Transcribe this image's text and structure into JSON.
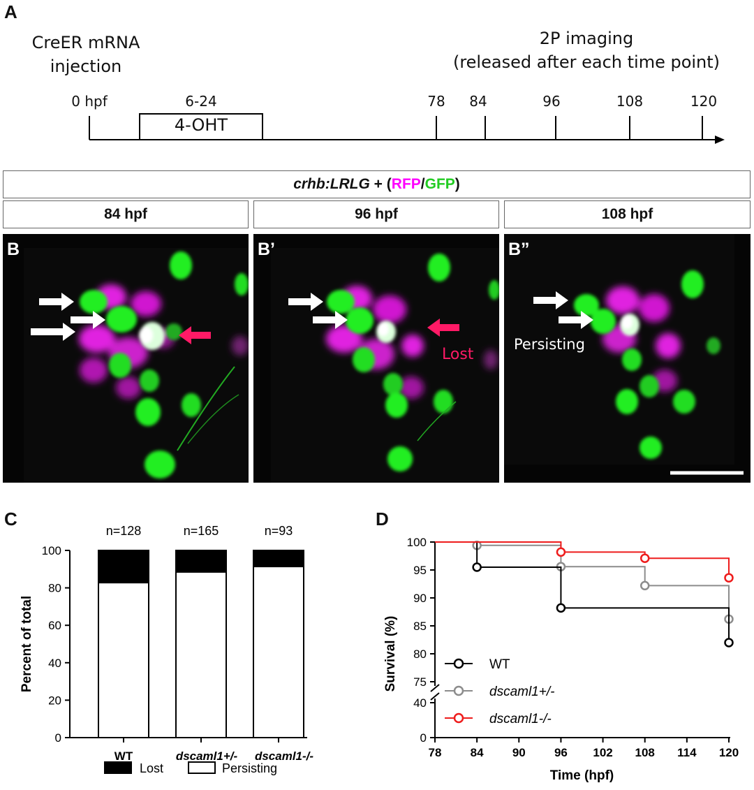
{
  "panel_a": {
    "letter": "A",
    "left_label_line1": "CreER mRNA",
    "left_label_line2": "injection",
    "right_label_line1": "2P imaging",
    "right_label_line2": "(released after each time point)",
    "ticks": [
      "0 hpf",
      "78",
      "84",
      "96",
      "108",
      "120"
    ],
    "window_range": "6-24",
    "window_label": "4-OHT"
  },
  "banner": {
    "prefix": "crhb:LRLG",
    "mid": " + (",
    "rfp": "RFP",
    "slash": "/",
    "gfp": "GFP",
    "suffix": ")",
    "rfp_color": "#ff00ff",
    "gfp_color": "#22cc22"
  },
  "timepoints": [
    "84 hpf",
    "96 hpf",
    "108 hpf"
  ],
  "micro_panels": [
    {
      "letter": "B"
    },
    {
      "letter": "B’",
      "annotation": "Lost"
    },
    {
      "letter": "B”",
      "annotation": "Persisting"
    }
  ],
  "colors": {
    "lost_arrow": "#ff1a66",
    "magenta": "#e020e0",
    "green": "#22ee22"
  },
  "chart_data": [
    {
      "panel": "C",
      "type": "bar",
      "stacked": true,
      "categories": [
        "WT",
        "dscaml1+/-",
        "dscaml1-/-"
      ],
      "n_labels": [
        "n=128",
        "n=165",
        "n=93"
      ],
      "series": [
        {
          "name": "Persisting",
          "values": [
            82.8,
            88.5,
            91.4
          ],
          "color": "#ffffff"
        },
        {
          "name": "Lost",
          "values": [
            17.2,
            11.5,
            8.6
          ],
          "color": "#000000"
        }
      ],
      "ylabel": "Percent of total",
      "yticks": [
        "0",
        "20",
        "40",
        "60",
        "80",
        "100"
      ],
      "ylim": [
        0,
        100
      ],
      "legend": [
        "Lost",
        "Persisting"
      ],
      "legend_position": "bottom"
    },
    {
      "panel": "D",
      "type": "line",
      "step": true,
      "x": [
        78,
        84,
        96,
        108,
        120
      ],
      "xticks": [
        "78",
        "84",
        "90",
        "96",
        "102",
        "108",
        "114",
        "120"
      ],
      "xlabel": "Time (hpf)",
      "ylabel": "Survival (%)",
      "yticks_upper": [
        "75",
        "80",
        "85",
        "90",
        "95",
        "100"
      ],
      "yticks_lower": [
        "0",
        "40"
      ],
      "y_axis_break": [
        40,
        75
      ],
      "series": [
        {
          "name": "WT",
          "color": "#000000",
          "x": [
            78,
            84,
            96,
            120
          ],
          "y": [
            100,
            95.5,
            88.2,
            82.0
          ]
        },
        {
          "name": "dscaml1+/-",
          "color": "#8c8c8c",
          "x": [
            78,
            84,
            96,
            108,
            120
          ],
          "y": [
            100,
            99.4,
            95.6,
            92.2,
            86.2
          ]
        },
        {
          "name": "dscaml1-/-",
          "color": "#ee1c1c",
          "x": [
            78,
            96,
            108,
            120
          ],
          "y": [
            100,
            98.2,
            97.1,
            93.6
          ]
        }
      ],
      "legend_position": "bottom-left"
    }
  ]
}
